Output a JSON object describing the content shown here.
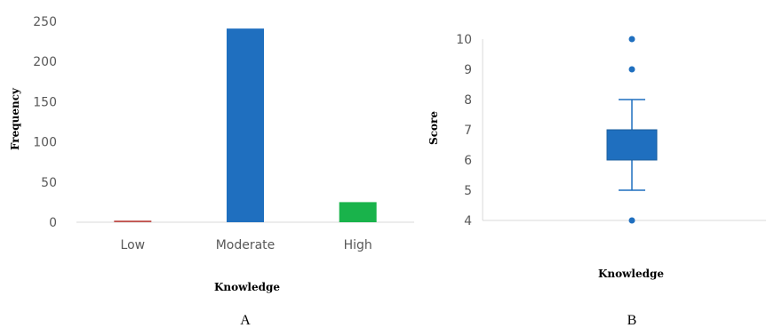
{
  "chart_data": [
    {
      "type": "bar",
      "panel_label": "A",
      "categories": [
        "Low",
        "Moderate",
        "High"
      ],
      "values": [
        2,
        241,
        25
      ],
      "colors": [
        "#c0504d",
        "#1f6fbf",
        "#19b34b"
      ],
      "xlabel": "Knowledge",
      "ylabel": "Frequency",
      "ylim": [
        0,
        250
      ],
      "yticks": [
        "0",
        "50",
        "100",
        "150",
        "200",
        "250"
      ],
      "grid": false,
      "legend": false
    },
    {
      "type": "box",
      "panel_label": "B",
      "xlabel": "Knowledge",
      "ylabel": "Score",
      "ylim": [
        4,
        10
      ],
      "yticks": [
        "4",
        "5",
        "6",
        "7",
        "8",
        "9",
        "10"
      ],
      "box": {
        "whisker_low": 5,
        "q1": 6,
        "q3": 7,
        "whisker_high": 8
      },
      "outliers": [
        4,
        9,
        10
      ],
      "color": "#1f6fbf",
      "grid": false,
      "legend": false
    }
  ]
}
